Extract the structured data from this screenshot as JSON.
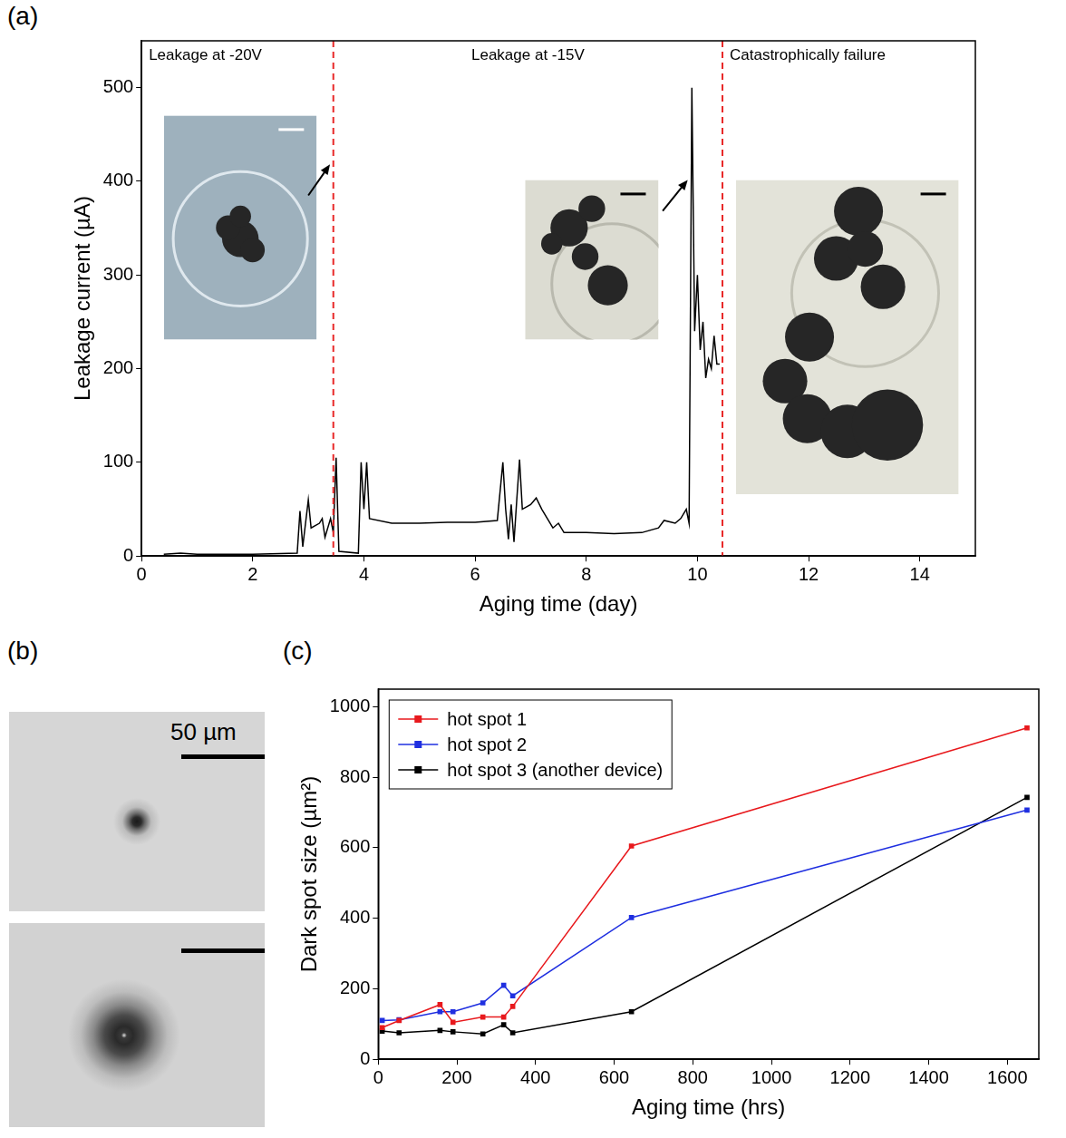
{
  "chart_data": [
    {
      "panel": "(a)",
      "type": "line",
      "x_label": "Aging time (day)",
      "y_label": "Leakage current (µA)",
      "x": [
        0.4,
        0.7,
        1.0,
        2.0,
        2.8,
        2.85,
        2.9,
        3.0,
        3.05,
        3.2,
        3.25,
        3.3,
        3.4,
        3.45,
        3.5,
        3.55,
        3.9,
        3.95,
        4.0,
        4.05,
        4.1,
        4.5,
        5.0,
        5.5,
        6.0,
        6.4,
        6.5,
        6.55,
        6.6,
        6.65,
        6.7,
        6.75,
        6.8,
        6.85,
        7.0,
        7.1,
        7.2,
        7.3,
        7.4,
        7.5,
        7.6,
        8.0,
        8.5,
        9.0,
        9.3,
        9.4,
        9.6,
        9.7,
        9.8,
        9.85,
        9.9,
        9.95,
        10.0,
        10.05,
        10.1,
        10.15,
        10.2,
        10.25,
        10.3,
        10.35,
        10.4
      ],
      "values": [
        2,
        3,
        2,
        2,
        3,
        48,
        10,
        60,
        30,
        35,
        40,
        20,
        40,
        25,
        105,
        5,
        3,
        100,
        50,
        100,
        40,
        35,
        35,
        36,
        36,
        38,
        100,
        50,
        18,
        55,
        15,
        60,
        103,
        50,
        55,
        62,
        50,
        40,
        30,
        35,
        25,
        25,
        24,
        25,
        30,
        38,
        35,
        40,
        50,
        35,
        500,
        240,
        300,
        220,
        250,
        190,
        210,
        200,
        235,
        205,
        205
      ],
      "color": "#000000",
      "xlim": [
        0,
        15
      ],
      "xticks": [
        0,
        2,
        4,
        6,
        8,
        10,
        12,
        14
      ],
      "ylim": [
        0,
        550
      ],
      "yticks": [
        0,
        100,
        200,
        300,
        400,
        500
      ],
      "grid": false,
      "vertical_lines": {
        "values": [
          3.45,
          10.45
        ],
        "color": "#e82828",
        "line_style": "dashed"
      },
      "annotations": [
        "Leakage at -20V",
        "Leakage at -15V",
        "Catastrophically failure"
      ]
    },
    {
      "panel": "(c)",
      "type": "line",
      "x_label": "Aging time (hrs)",
      "y_label": "Dark spot size (µm²)",
      "x": [
        10,
        53,
        157,
        190,
        266,
        319,
        342,
        644,
        1650
      ],
      "series": [
        {
          "name": "hot spot 1",
          "color": "#e8191d",
          "values": [
            90,
            110,
            155,
            105,
            120,
            120,
            150,
            605,
            940
          ]
        },
        {
          "name": "hot spot 2",
          "color": "#1f2fe0",
          "values": [
            110,
            112,
            135,
            135,
            160,
            210,
            180,
            402,
            707
          ]
        },
        {
          "name": "hot spot 3 (another device)",
          "color": "#000000",
          "values": [
            80,
            75,
            82,
            78,
            72,
            98,
            75,
            135,
            743
          ]
        }
      ],
      "xlim": [
        0,
        1680
      ],
      "xticks": [
        0,
        200,
        400,
        600,
        800,
        1000,
        1200,
        1400,
        1600
      ],
      "ylim": [
        0,
        1050
      ],
      "yticks": [
        0,
        200,
        400,
        600,
        800,
        1000
      ],
      "grid": false,
      "legend": "upper left",
      "marker": "square",
      "line_style": "solid"
    }
  ],
  "panel_b": {
    "panel": "(b)",
    "scale_bar_label": "50 µm"
  }
}
